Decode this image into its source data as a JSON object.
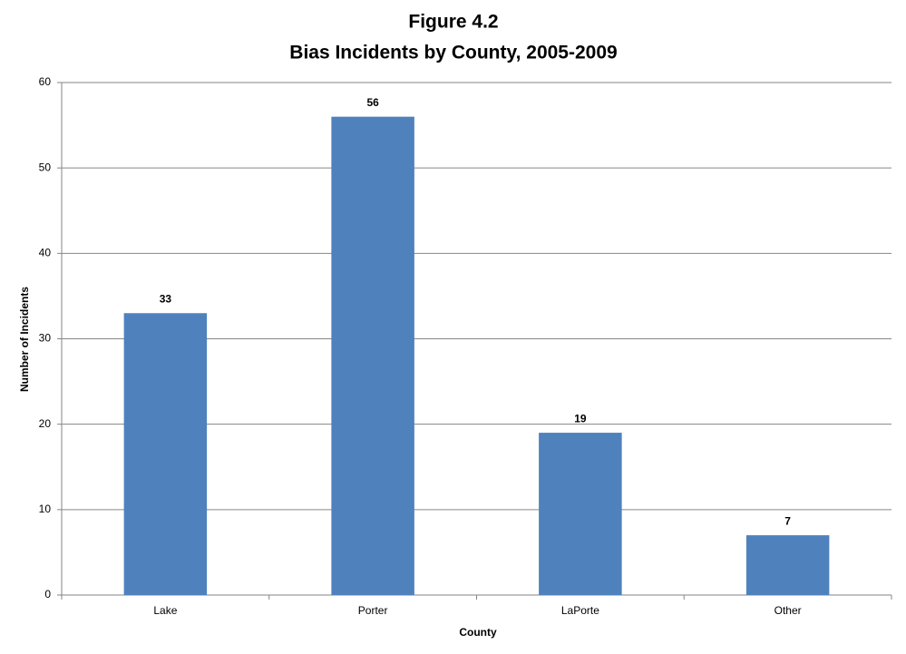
{
  "chart_data": {
    "type": "bar",
    "title": "Figure 4.2",
    "subtitle": "Bias Incidents by County, 2005-2009",
    "x_label": "County",
    "y_label": "Number of Incidents",
    "categories": [
      "Lake",
      "Porter",
      "LaPorte",
      "Other"
    ],
    "values": [
      33,
      56,
      19,
      7
    ],
    "color": "#4f81bd",
    "ylim": [
      0,
      60
    ],
    "yticks": [
      0,
      10,
      20,
      30,
      40,
      50,
      60
    ],
    "grid": true,
    "data_labels": true
  }
}
